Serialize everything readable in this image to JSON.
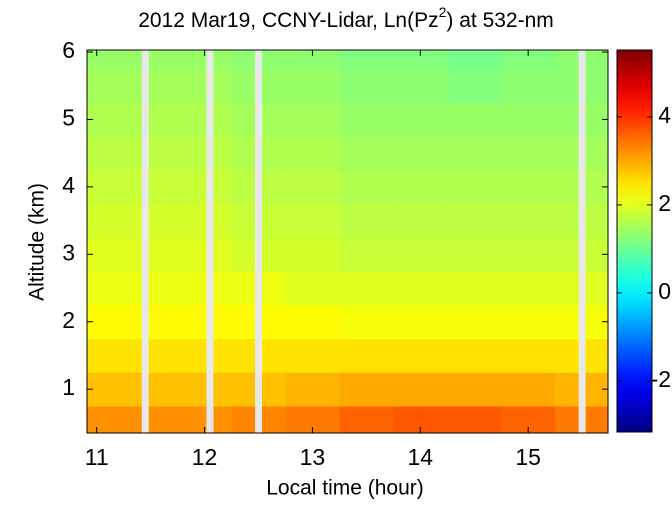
{
  "chart_data": {
    "type": "heatmap",
    "title_parts": [
      "2012 Mar19, CCNY-Lidar, Ln(Pz",
      "2",
      ") at 532-nm"
    ],
    "x_label": "Local time (hour)",
    "y_label": "Altitude (km)",
    "x": [
      11,
      11.5,
      12,
      12.5,
      13,
      13.5,
      14,
      14.5,
      15,
      15.5
    ],
    "y": [
      0.5,
      1,
      1.5,
      2,
      2.5,
      3,
      3.5,
      4,
      4.5,
      5,
      5.5,
      6
    ],
    "z": [
      [
        3.2,
        3.2,
        3.2,
        3.3,
        3.4,
        3.6,
        3.7,
        3.7,
        3.6,
        3.4
      ],
      [
        2.8,
        2.8,
        2.8,
        2.8,
        2.9,
        3.0,
        3.0,
        3.0,
        3.0,
        2.9
      ],
      [
        2.5,
        2.5,
        2.5,
        2.5,
        2.5,
        2.5,
        2.5,
        2.5,
        2.5,
        2.5
      ],
      [
        2.3,
        2.3,
        2.3,
        2.3,
        2.3,
        2.2,
        2.2,
        2.2,
        2.2,
        2.2
      ],
      [
        2.1,
        2.1,
        2.1,
        2.1,
        2.0,
        2.0,
        2.0,
        2.0,
        2.0,
        2.0
      ],
      [
        2.0,
        2.0,
        2.0,
        1.9,
        1.9,
        1.8,
        1.8,
        1.8,
        1.8,
        1.8
      ],
      [
        1.9,
        1.9,
        1.9,
        1.8,
        1.8,
        1.7,
        1.7,
        1.7,
        1.7,
        1.7
      ],
      [
        1.8,
        1.8,
        1.8,
        1.7,
        1.7,
        1.6,
        1.6,
        1.6,
        1.6,
        1.6
      ],
      [
        1.7,
        1.7,
        1.7,
        1.6,
        1.6,
        1.5,
        1.5,
        1.5,
        1.5,
        1.5
      ],
      [
        1.6,
        1.6,
        1.6,
        1.5,
        1.5,
        1.4,
        1.4,
        1.4,
        1.4,
        1.4
      ],
      [
        1.5,
        1.5,
        1.5,
        1.4,
        1.4,
        1.3,
        1.3,
        1.2,
        1.3,
        1.3
      ],
      [
        1.4,
        1.4,
        1.4,
        1.3,
        1.3,
        1.2,
        1.2,
        1.1,
        1.2,
        1.3
      ]
    ],
    "gaps": [
      11.45,
      12.05,
      12.5,
      15.5
    ],
    "xlim": [
      10.91,
      15.74
    ],
    "ylim": [
      0.35,
      6.03
    ],
    "xticks": [
      11,
      12,
      13,
      14,
      15
    ],
    "yticks": [
      1,
      2,
      3,
      4,
      5,
      6
    ],
    "colormap": "jet",
    "clim": [
      -3.16,
      5.52
    ],
    "cticks": [
      -2,
      0,
      2,
      4
    ]
  }
}
